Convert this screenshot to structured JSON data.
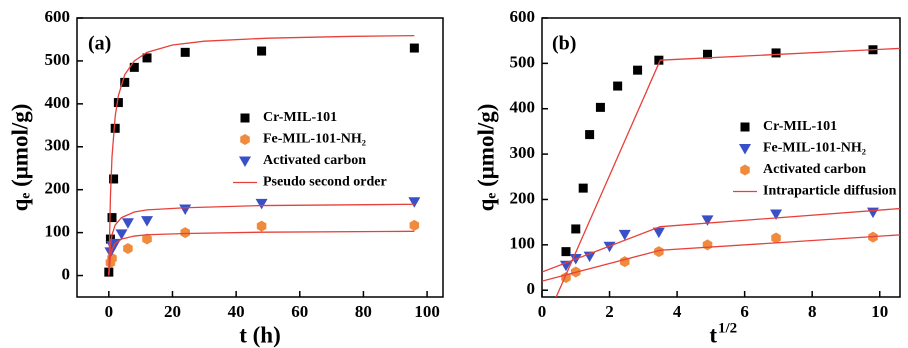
{
  "chart_data": [
    {
      "type": "scatter",
      "panel_label": "(a)",
      "x_label": "t (h)",
      "y_label": "qₑ (μmol/g)",
      "xlim": [
        -10,
        105
      ],
      "xticks": [
        0,
        20,
        40,
        60,
        80,
        100
      ],
      "ylim": [
        -50,
        600
      ],
      "yticks": [
        0,
        100,
        200,
        300,
        400,
        500,
        600
      ],
      "legend": "center right",
      "series": [
        {
          "name": "Cr-MIL-101",
          "style": "square",
          "color": "#000000",
          "x": [
            0,
            0.5,
            1,
            1.5,
            2,
            3,
            5,
            8,
            12,
            24,
            48,
            96
          ],
          "values": [
            8,
            85,
            135,
            225,
            343,
            403,
            450,
            485,
            507,
            520,
            523,
            530
          ]
        },
        {
          "name": "Fe-MIL-101-NH₂",
          "style": "hexagon",
          "color": "#f08a3c",
          "x": [
            0.5,
            1,
            6,
            12,
            24,
            48,
            96
          ],
          "values": [
            30,
            40,
            63,
            85,
            100,
            115,
            117
          ]
        },
        {
          "name": "Activated carbon",
          "style": "triangle",
          "color": "#3a50c8",
          "x": [
            0.5,
            1,
            2,
            4,
            6,
            12,
            24,
            48,
            96
          ],
          "values": [
            55,
            70,
            75,
            97,
            123,
            128,
            155,
            168,
            172
          ]
        },
        {
          "name": "Pseudo second order",
          "style": "line",
          "color": "#e8403a",
          "x": [
            0,
            0.5,
            1,
            2,
            3,
            5,
            8,
            12,
            20,
            30,
            50,
            75,
            96
          ],
          "values": [
            0,
            183,
            277,
            371,
            419,
            468,
            500,
            520,
            537,
            546,
            553,
            557,
            559
          ]
        },
        {
          "name": null,
          "style": "line",
          "color": "#e8403a",
          "x": [
            0,
            0.5,
            1,
            2,
            4,
            8,
            12,
            24,
            48,
            96
          ],
          "values": [
            0,
            70,
            95,
            118,
            135,
            148,
            153,
            158,
            163,
            166
          ]
        },
        {
          "name": null,
          "style": "line",
          "color": "#e8403a",
          "x": [
            0,
            0.5,
            1,
            2,
            4,
            8,
            12,
            24,
            48,
            96
          ],
          "values": [
            0,
            45,
            60,
            75,
            85,
            92,
            95,
            98,
            101,
            103
          ]
        }
      ]
    },
    {
      "type": "scatter",
      "panel_label": "(b)",
      "x_label": "t",
      "x_label_sup": "1/2",
      "y_label": "qₑ (μmol/g)",
      "xlim": [
        0,
        10.6
      ],
      "xticks": [
        0,
        2,
        4,
        6,
        8,
        10
      ],
      "ylim": [
        -15,
        600
      ],
      "yticks": [
        0,
        100,
        200,
        300,
        400,
        500,
        600
      ],
      "legend": "center right",
      "series": [
        {
          "name": "Cr-MIL-101",
          "style": "square",
          "color": "#000000",
          "x": [
            0.71,
            1,
            1.22,
            1.41,
            1.73,
            2.24,
            2.83,
            3.46,
            4.9,
            6.93,
            9.8
          ],
          "values": [
            85,
            135,
            225,
            343,
            403,
            450,
            485,
            507,
            520,
            523,
            530
          ]
        },
        {
          "name": "Fe-MIL-101-NH₂",
          "style": "triangle",
          "color": "#3a50c8",
          "x": [
            0.71,
            1,
            1.41,
            2,
            2.45,
            3.46,
            4.9,
            6.93,
            9.8
          ],
          "values": [
            55,
            70,
            75,
            97,
            123,
            128,
            155,
            168,
            172
          ]
        },
        {
          "name": "Activated carbon",
          "style": "hexagon",
          "color": "#f08a3c",
          "x": [
            0.71,
            1,
            2.45,
            3.46,
            4.9,
            6.93,
            9.8
          ],
          "values": [
            28,
            40,
            63,
            85,
            100,
            115,
            117
          ]
        },
        {
          "name": "Intraparticle diffusion",
          "style": "line",
          "color": "#e8403a",
          "x": [
            0.42,
            3.5,
            10.6
          ],
          "values": [
            -15,
            507,
            533
          ]
        },
        {
          "name": null,
          "style": "line",
          "color": "#e8403a",
          "x": [
            0,
            3.5,
            10.6
          ],
          "values": [
            40,
            140,
            180
          ]
        },
        {
          "name": null,
          "style": "line",
          "color": "#e8403a",
          "x": [
            0,
            3.5,
            10.6
          ],
          "values": [
            20,
            88,
            122
          ]
        }
      ]
    }
  ]
}
